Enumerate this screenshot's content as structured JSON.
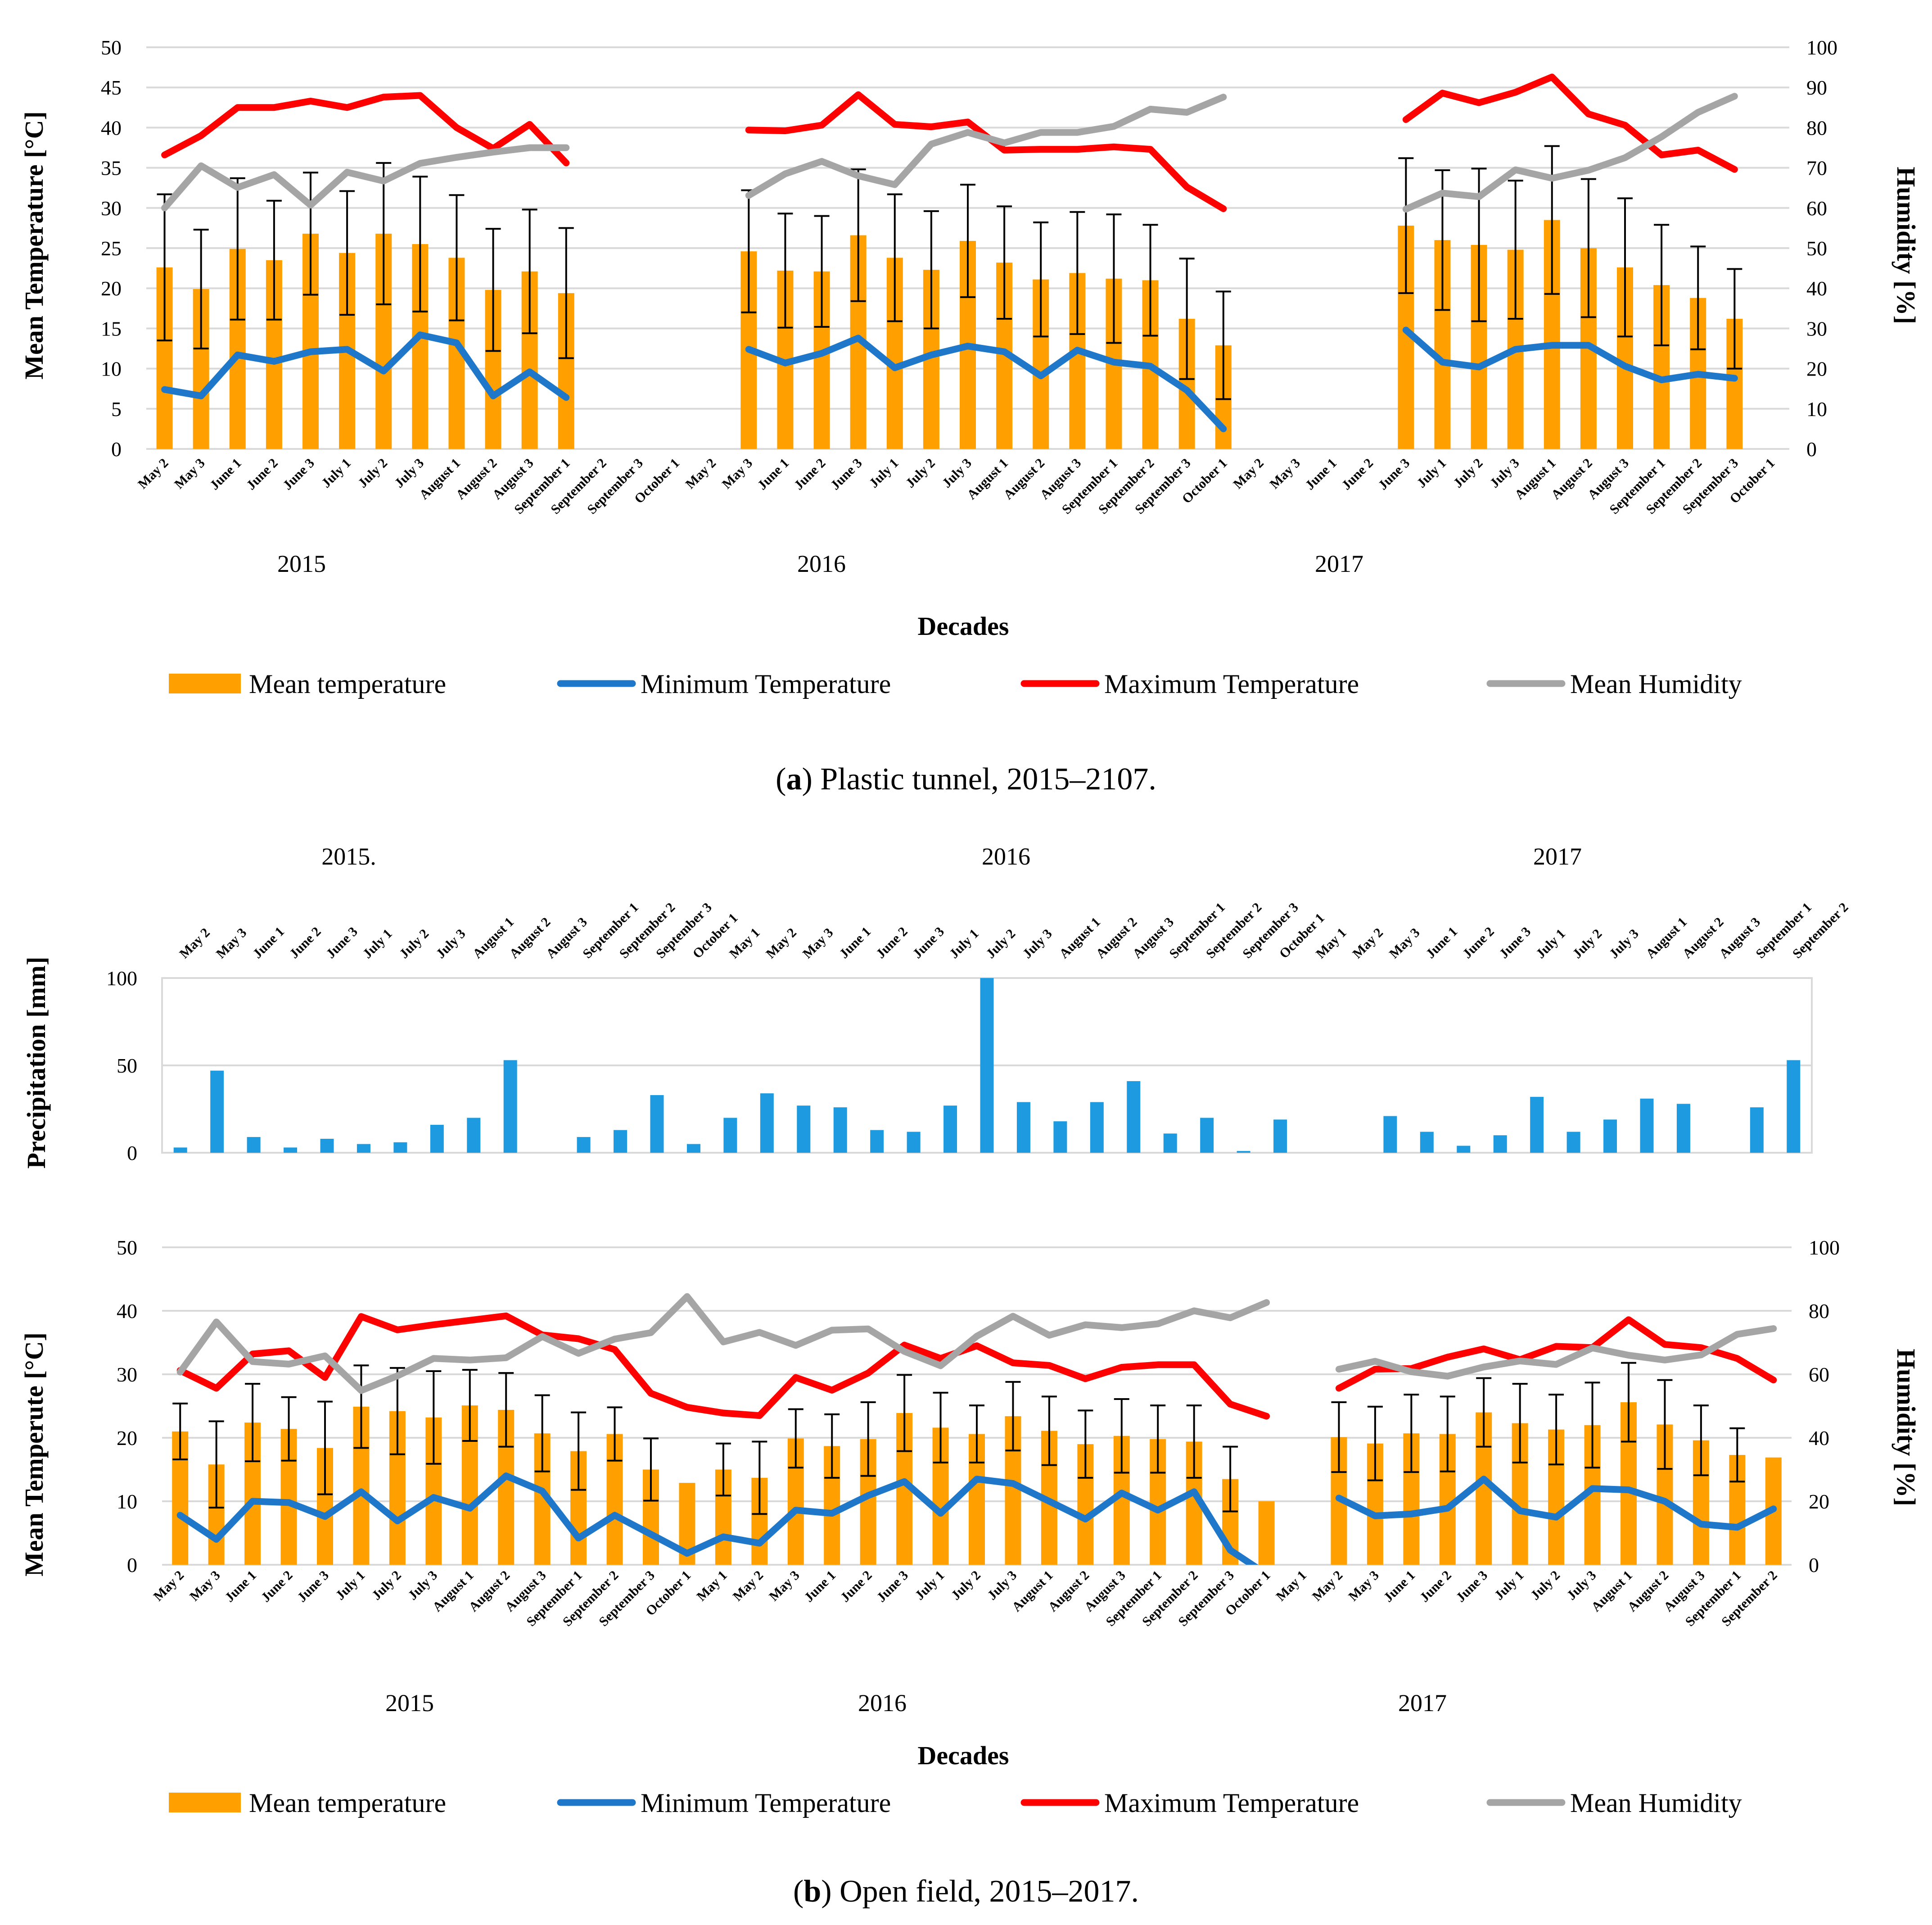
{
  "chart_data": [
    {
      "type": "bar",
      "title": "",
      "xlabel": "Decades",
      "ylabel": "Mean Temperature  [°C]",
      "y2label": "Humidity [%]",
      "ylim": [
        0,
        50
      ],
      "y2lim": [
        0,
        100
      ],
      "yticks": [
        "0",
        "5",
        "10",
        "15",
        "20",
        "25",
        "30",
        "35",
        "40",
        "45",
        "50"
      ],
      "y2ticks": [
        "0",
        "10",
        "20",
        "30",
        "40",
        "50",
        "60",
        "70",
        "80",
        "90",
        "100"
      ],
      "grid": true,
      "years": [
        "2015",
        "2016",
        "2017"
      ],
      "categories": [
        "May 2",
        "May 3",
        "June 1",
        "June 2",
        "June 3",
        "July 1",
        "July 2",
        "July 3",
        "August 1",
        "August 2",
        "August 3",
        "September 1",
        "September 2",
        "September 3",
        "October 1",
        "May 2",
        "May 3",
        "June 1",
        "June 2",
        "June 3",
        "July 1",
        "July 2",
        "July 3",
        "August 1",
        "August 2",
        "August 3",
        "September 1",
        "September 2",
        "September 3",
        "October 1",
        "May 2",
        "May 3",
        "June 1",
        "June 2",
        "June 3",
        "July 1",
        "July 2",
        "July 3",
        "August 1",
        "August 2",
        "August 3",
        "September 1",
        "September 2",
        "September 3",
        "October 1"
      ],
      "series": [
        {
          "name": "Mean temperature",
          "kind": "bar",
          "axis": "left",
          "color": "#ffa000",
          "values": [
            22.6,
            19.9,
            24.9,
            23.5,
            26.8,
            24.4,
            26.8,
            25.5,
            23.8,
            19.8,
            22.1,
            19.4,
            null,
            null,
            null,
            null,
            24.6,
            22.2,
            22.1,
            26.6,
            23.8,
            22.3,
            25.9,
            23.2,
            21.1,
            21.9,
            21.2,
            21.0,
            16.2,
            12.9,
            null,
            null,
            null,
            null,
            27.8,
            26.0,
            25.4,
            24.8,
            28.5,
            25.0,
            22.6,
            20.4,
            18.8,
            16.2,
            null
          ],
          "error": [
            9.1,
            7.4,
            8.8,
            7.4,
            7.6,
            7.7,
            8.8,
            8.4,
            7.8,
            7.6,
            7.7,
            8.1,
            null,
            null,
            null,
            null,
            7.6,
            7.1,
            6.9,
            8.2,
            7.9,
            7.3,
            7.0,
            7.0,
            7.1,
            7.6,
            8.0,
            6.9,
            7.5,
            6.7,
            null,
            null,
            null,
            null,
            8.4,
            8.7,
            9.5,
            8.6,
            9.2,
            8.6,
            8.6,
            7.5,
            6.4,
            6.2,
            null
          ]
        },
        {
          "name": "Minimum Temperature",
          "kind": "line",
          "axis": "left",
          "color": "#1f77c9",
          "values": [
            7.4,
            6.6,
            11.7,
            10.9,
            12.1,
            12.4,
            9.7,
            14.2,
            13.2,
            6.6,
            9.6,
            6.4,
            null,
            null,
            null,
            null,
            12.4,
            10.7,
            11.9,
            13.8,
            10.1,
            11.7,
            12.8,
            12.1,
            9.1,
            12.3,
            10.8,
            10.3,
            7.3,
            2.5,
            null,
            null,
            null,
            null,
            14.8,
            10.8,
            10.2,
            12.4,
            12.9,
            12.9,
            10.3,
            8.6,
            9.3,
            8.8,
            null
          ]
        },
        {
          "name": "Maximum Temperature",
          "kind": "line",
          "axis": "left",
          "color": "#ff0000",
          "values": [
            36.6,
            39.0,
            42.5,
            42.5,
            43.3,
            42.5,
            43.8,
            44.0,
            40.0,
            37.4,
            40.4,
            35.6,
            null,
            null,
            null,
            null,
            39.7,
            39.6,
            40.3,
            44.1,
            40.4,
            40.1,
            40.7,
            37.2,
            37.3,
            37.3,
            37.6,
            37.3,
            32.6,
            29.9,
            null,
            null,
            null,
            null,
            41.0,
            44.3,
            43.1,
            44.4,
            46.3,
            41.7,
            40.3,
            36.6,
            37.2,
            34.8,
            null
          ]
        },
        {
          "name": "Mean Humidity",
          "kind": "line",
          "axis": "right",
          "color": "#a5a5a5",
          "values": [
            60.0,
            70.5,
            65.1,
            68.3,
            60.7,
            68.9,
            66.7,
            71.1,
            72.6,
            73.9,
            75.0,
            75.0,
            null,
            null,
            null,
            null,
            63.1,
            68.5,
            71.6,
            68.0,
            65.8,
            75.9,
            78.8,
            76.2,
            78.8,
            78.8,
            80.3,
            84.6,
            83.8,
            87.6,
            null,
            null,
            null,
            null,
            59.7,
            63.7,
            62.8,
            69.5,
            67.4,
            69.4,
            72.5,
            77.7,
            83.8,
            87.8,
            null
          ]
        }
      ],
      "legend": [
        "Mean temperature",
        "Minimum Temperature",
        "Maximum Temperature",
        "Mean Humidity"
      ],
      "legend_position": "bottom",
      "caption_label": "a",
      "caption_text": ") Plastic tunnel, 2015–2107."
    },
    {
      "type": "bar",
      "title": "",
      "ylabel": "Precipitation [mm]",
      "ylim": [
        0,
        100
      ],
      "yticks": [
        "0",
        "50",
        "100"
      ],
      "grid": true,
      "years": [
        "2015.",
        "2016",
        "2017"
      ],
      "categories": [
        "May 2",
        "May 3",
        "June 1",
        "June 2",
        "June 3",
        "July 1",
        "July 2",
        "July 3",
        "August 1",
        "August 2",
        "August 3",
        "September 1",
        "September 2",
        "September 3",
        "October 1",
        "May 1",
        "May 2",
        "May 3",
        "June 1",
        "June 2",
        "June 3",
        "July 1",
        "July 2",
        "July 3",
        "August 1",
        "August 2",
        "August 3",
        "September 1",
        "September 2",
        "September 3",
        "October 1",
        "May 1",
        "May 2",
        "May 3",
        "June 1",
        "June 2",
        "June 3",
        "July 1",
        "July 2",
        "July 3",
        "August 1",
        "August 2",
        "August 3",
        "September 1",
        "September 2"
      ],
      "series": [
        {
          "name": "Precipitation",
          "kind": "bar",
          "color": "#1e9be0",
          "values": [
            3,
            47,
            9,
            3,
            8,
            5,
            6,
            16,
            20,
            53,
            0,
            9,
            13,
            33,
            5,
            20,
            34,
            27,
            26,
            13,
            12,
            27,
            100,
            29,
            18,
            29,
            41,
            11,
            20,
            1,
            19,
            0,
            0,
            21,
            12,
            4,
            10,
            32,
            12,
            19,
            31,
            28,
            0,
            26,
            53
          ]
        }
      ],
      "x_axis_position": "top"
    },
    {
      "type": "bar",
      "title": "",
      "xlabel": "Decades",
      "ylabel": "Mean Temperute  [°C]",
      "y2label": "Humidity [%]",
      "ylim": [
        0,
        50
      ],
      "y2lim": [
        0,
        100
      ],
      "yticks": [
        "0",
        "10",
        "20",
        "30",
        "40",
        "50"
      ],
      "y2ticks": [
        "0",
        "20",
        "40",
        "60",
        "80",
        "100"
      ],
      "grid": true,
      "years": [
        "2015",
        "2016",
        "2017"
      ],
      "categories": [
        "May 2",
        "May 3",
        "June 1",
        "June 2",
        "June 3",
        "July 1",
        "July 2",
        "July 3",
        "August 1",
        "August 2",
        "August 3",
        "September 1",
        "September 2",
        "September 3",
        "October 1",
        "May 1",
        "May 2",
        "May 3",
        "June 1",
        "June 2",
        "June 3",
        "July 1",
        "July 2",
        "July 3",
        "August 1",
        "August 2",
        "August 3",
        "September 1",
        "September 2",
        "September 3",
        "October 1",
        "May 1",
        "May 2",
        "May 3",
        "June 1",
        "June 2",
        "June 3",
        "July 1",
        "July 2",
        "July 3",
        "August 1",
        "August 2",
        "August 3",
        "September 1",
        "September 2"
      ],
      "series": [
        {
          "name": "Mean temperature",
          "kind": "bar",
          "axis": "left",
          "color": "#ffa000",
          "values": [
            21.0,
            15.8,
            22.4,
            21.4,
            18.4,
            24.9,
            24.2,
            23.2,
            25.1,
            24.4,
            20.7,
            17.9,
            20.6,
            15.0,
            12.9,
            15.0,
            13.7,
            19.9,
            18.7,
            19.8,
            23.9,
            21.6,
            20.6,
            23.4,
            21.1,
            19.0,
            20.3,
            19.8,
            19.4,
            13.5,
            10.0,
            null,
            20.1,
            19.1,
            20.7,
            20.6,
            24.0,
            22.3,
            21.3,
            22.0,
            25.6,
            22.1,
            19.6,
            17.3,
            16.9
          ],
          "error": [
            4.4,
            6.8,
            6.1,
            5.0,
            7.3,
            6.5,
            6.8,
            7.3,
            5.6,
            5.8,
            6.0,
            6.1,
            4.2,
            4.9,
            null,
            4.1,
            5.7,
            4.6,
            5.0,
            5.8,
            6.0,
            5.5,
            4.5,
            5.4,
            5.4,
            5.3,
            5.8,
            5.3,
            5.7,
            5.1,
            null,
            null,
            5.5,
            5.8,
            6.1,
            5.9,
            5.4,
            6.2,
            5.5,
            6.7,
            6.2,
            7.0,
            5.5,
            4.2,
            null
          ]
        },
        {
          "name": "Minimum Temperature",
          "kind": "line",
          "axis": "left",
          "color": "#1f77c9",
          "values": [
            7.8,
            4.0,
            10.0,
            9.8,
            7.6,
            11.5,
            6.9,
            10.6,
            8.9,
            14.0,
            11.6,
            4.2,
            7.8,
            4.8,
            1.8,
            4.4,
            3.4,
            8.6,
            8.1,
            10.9,
            13.1,
            8.1,
            13.5,
            12.8,
            10.0,
            7.2,
            11.3,
            8.6,
            11.5,
            2.3,
            -1.5,
            null,
            10.5,
            7.7,
            8.0,
            8.9,
            13.5,
            8.5,
            7.5,
            12.0,
            11.8,
            10.0,
            6.4,
            5.9,
            8.8
          ]
        },
        {
          "name": "Maximum Temperature",
          "kind": "line",
          "axis": "left",
          "color": "#ff0000",
          "values": [
            30.6,
            27.8,
            33.2,
            33.7,
            29.5,
            39.1,
            37.0,
            37.8,
            38.5,
            39.2,
            36.2,
            35.6,
            33.9,
            27.0,
            24.8,
            23.9,
            23.5,
            29.5,
            27.5,
            30.2,
            34.6,
            32.5,
            34.5,
            31.8,
            31.4,
            29.3,
            31.1,
            31.5,
            31.5,
            25.3,
            23.4,
            null,
            27.8,
            30.8,
            30.9,
            32.7,
            34.0,
            32.3,
            34.4,
            34.2,
            38.6,
            34.7,
            34.2,
            32.5,
            29.1
          ]
        },
        {
          "name": "Mean Humidity",
          "kind": "line",
          "axis": "right",
          "color": "#a5a5a5",
          "values": [
            60.7,
            76.5,
            64.0,
            63.2,
            65.8,
            54.9,
            59.5,
            65.0,
            64.5,
            65.2,
            71.9,
            66.6,
            71.1,
            73.1,
            84.5,
            70.2,
            73.2,
            69.1,
            73.9,
            74.3,
            67.2,
            62.7,
            72.0,
            78.3,
            72.3,
            75.6,
            74.7,
            75.9,
            80.0,
            77.8,
            82.6,
            null,
            61.6,
            64.1,
            60.8,
            59.4,
            62.3,
            64.2,
            63.1,
            68.3,
            66.0,
            64.5,
            66.1,
            72.6,
            74.4
          ]
        }
      ],
      "legend": [
        "Mean temperature",
        "Minimum Temperature",
        "Maximum Temperature",
        "Mean Humidity"
      ],
      "legend_position": "bottom",
      "caption_label": "b",
      "caption_text": ") Open field, 2015–2017."
    }
  ]
}
